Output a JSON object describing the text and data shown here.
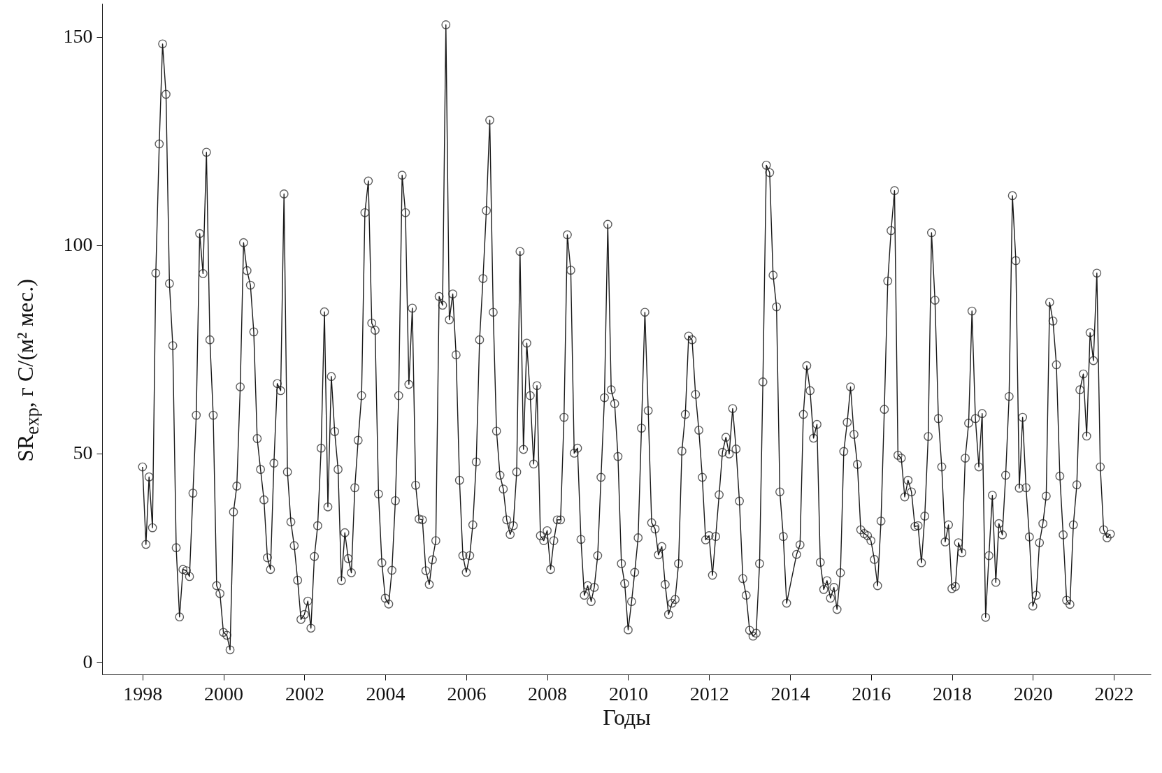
{
  "chart_data": {
    "type": "line",
    "xlabel": "Годы",
    "ylabel": "SR$_{exp}$, г C/(м² мес.)",
    "x": [
      "1998-01",
      "1998-02",
      "1998-03",
      "1998-04",
      "1998-05",
      "1998-06",
      "1998-07",
      "1998-08",
      "1998-09",
      "1998-10",
      "1998-11",
      "1998-12",
      "1999-01",
      "1999-02",
      "1999-03",
      "1999-04",
      "1999-05",
      "1999-06",
      "1999-07",
      "1999-08",
      "1999-09",
      "1999-10",
      "1999-11",
      "1999-12",
      "2000-01",
      "2000-02",
      "2000-03",
      "2000-04",
      "2000-05",
      "2000-06",
      "2000-07",
      "2000-08",
      "2000-09",
      "2000-10",
      "2000-11",
      "2000-12",
      "2001-01",
      "2001-02",
      "2001-03",
      "2001-04",
      "2001-05",
      "2001-06",
      "2001-07",
      "2001-08",
      "2001-09",
      "2001-10",
      "2001-11",
      "2001-12",
      "2002-01",
      "2002-02",
      "2002-03",
      "2002-04",
      "2002-05",
      "2002-06",
      "2002-07",
      "2002-08",
      "2002-09",
      "2002-10",
      "2002-11",
      "2002-12",
      "2003-01",
      "2003-02",
      "2003-03",
      "2003-04",
      "2003-05",
      "2003-06",
      "2003-07",
      "2003-08",
      "2003-09",
      "2003-10",
      "2003-11",
      "2003-12",
      "2004-01",
      "2004-02",
      "2004-03",
      "2004-04",
      "2004-05",
      "2004-06",
      "2004-07",
      "2004-08",
      "2004-09",
      "2004-10",
      "2004-11",
      "2004-12",
      "2005-01",
      "2005-02",
      "2005-03",
      "2005-04",
      "2005-05",
      "2005-06",
      "2005-07",
      "2005-08",
      "2005-09",
      "2005-10",
      "2005-11",
      "2005-12",
      "2006-01",
      "2006-02",
      "2006-03",
      "2006-04",
      "2006-05",
      "2006-06",
      "2006-07",
      "2006-08",
      "2006-09",
      "2006-10",
      "2006-11",
      "2006-12",
      "2007-01",
      "2007-02",
      "2007-03",
      "2007-04",
      "2007-05",
      "2007-06",
      "2007-07",
      "2007-08",
      "2007-09",
      "2007-10",
      "2007-11",
      "2007-12",
      "2008-01",
      "2008-02",
      "2008-03",
      "2008-04",
      "2008-05",
      "2008-06",
      "2008-07",
      "2008-08",
      "2008-09",
      "2008-10",
      "2008-11",
      "2008-12",
      "2009-01",
      "2009-02",
      "2009-03",
      "2009-04",
      "2009-05",
      "2009-06",
      "2009-07",
      "2009-08",
      "2009-09",
      "2009-10",
      "2009-11",
      "2009-12",
      "2010-01",
      "2010-02",
      "2010-03",
      "2010-04",
      "2010-05",
      "2010-06",
      "2010-07",
      "2010-08",
      "2010-09",
      "2010-10",
      "2010-11",
      "2010-12",
      "2011-01",
      "2011-02",
      "2011-03",
      "2011-04",
      "2011-05",
      "2011-06",
      "2011-07",
      "2011-08",
      "2011-09",
      "2011-10",
      "2011-11",
      "2011-12",
      "2012-01",
      "2012-02",
      "2012-03",
      "2012-04",
      "2012-05",
      "2012-06",
      "2012-07",
      "2012-08",
      "2012-09",
      "2012-10",
      "2012-11",
      "2012-12",
      "2013-01",
      "2013-02",
      "2013-03",
      "2013-04",
      "2013-05",
      "2013-06",
      "2013-07",
      "2013-08",
      "2013-09",
      "2013-10",
      "2013-11",
      "2013-12",
      "2014-03",
      "2014-04",
      "2014-05",
      "2014-06",
      "2014-07",
      "2014-08",
      "2014-09",
      "2014-10",
      "2014-11",
      "2014-12",
      "2015-01",
      "2015-02",
      "2015-03",
      "2015-04",
      "2015-05",
      "2015-06",
      "2015-07",
      "2015-08",
      "2015-09",
      "2015-10",
      "2015-11",
      "2015-12",
      "2016-01",
      "2016-02",
      "2016-03",
      "2016-04",
      "2016-05",
      "2016-06",
      "2016-07",
      "2016-08",
      "2016-09",
      "2016-10",
      "2016-11",
      "2016-12",
      "2017-01",
      "2017-02",
      "2017-03",
      "2017-04",
      "2017-05",
      "2017-06",
      "2017-07",
      "2017-08",
      "2017-09",
      "2017-10",
      "2017-11",
      "2017-12",
      "2018-01",
      "2018-02",
      "2018-03",
      "2018-04",
      "2018-05",
      "2018-06",
      "2018-07",
      "2018-08",
      "2018-09",
      "2018-10",
      "2018-11",
      "2018-12",
      "2019-01",
      "2019-02",
      "2019-03",
      "2019-04",
      "2019-05",
      "2019-06",
      "2019-07",
      "2019-08",
      "2019-09",
      "2019-10",
      "2019-11",
      "2019-12",
      "2020-01",
      "2020-02",
      "2020-03",
      "2020-04",
      "2020-05",
      "2020-06",
      "2020-07",
      "2020-08",
      "2020-09",
      "2020-10",
      "2020-11",
      "2020-12",
      "2021-01",
      "2021-02",
      "2021-03",
      "2021-04",
      "2021-05",
      "2021-06",
      "2021-07",
      "2021-08",
      "2021-09",
      "2021-10",
      "2021-11",
      "2021-12"
    ],
    "values": [
      46.8,
      28.2,
      44.4,
      32.2,
      93.3,
      124.3,
      148.3,
      136.2,
      90.8,
      75.9,
      27.4,
      10.8,
      22.2,
      21.9,
      20.5,
      40.5,
      59.2,
      102.8,
      93.2,
      122.3,
      77.3,
      59.2,
      18.3,
      16.4,
      7.1,
      6.4,
      2.9,
      36.0,
      42.2,
      66.0,
      100.6,
      93.9,
      90.4,
      79.2,
      53.6,
      46.2,
      38.9,
      25.0,
      22.2,
      47.7,
      66.8,
      65.1,
      112.3,
      45.6,
      33.6,
      27.9,
      19.6,
      10.2,
      11.4,
      14.6,
      8.1,
      25.3,
      32.7,
      51.3,
      84.0,
      37.2,
      68.5,
      55.3,
      46.2,
      19.5,
      31.0,
      24.8,
      21.4,
      41.8,
      53.2,
      63.9,
      107.8,
      115.4,
      81.3,
      79.6,
      40.3,
      23.8,
      15.3,
      13.9,
      22.0,
      38.7,
      63.9,
      116.8,
      107.8,
      66.6,
      84.9,
      42.4,
      34.3,
      34.1,
      21.9,
      18.6,
      24.5,
      29.1,
      87.7,
      85.6,
      152.9,
      82.1,
      88.3,
      73.7,
      43.6,
      25.5,
      21.5,
      25.5,
      32.9,
      48.0,
      77.3,
      92.0,
      108.3,
      130.0,
      83.9,
      55.4,
      44.8,
      41.5,
      34.1,
      30.6,
      32.7,
      45.6,
      98.5,
      51.0,
      76.5,
      63.9,
      47.5,
      66.3,
      30.3,
      29.1,
      31.5,
      22.2,
      29.1,
      34.1,
      34.1,
      58.7,
      102.5,
      94.0,
      50.1,
      51.3,
      29.4,
      16.0,
      18.3,
      14.5,
      17.9,
      25.5,
      44.3,
      63.4,
      105.0,
      65.3,
      62.0,
      49.3,
      23.6,
      18.8,
      7.7,
      14.5,
      21.5,
      29.8,
      56.1,
      83.9,
      60.3,
      33.4,
      31.9,
      25.7,
      27.7,
      18.6,
      11.4,
      14.1,
      15.0,
      23.6,
      50.6,
      59.4,
      78.2,
      77.3,
      64.2,
      55.6,
      44.3,
      29.3,
      30.3,
      20.8,
      30.1,
      40.1,
      50.3,
      53.9,
      49.9,
      60.8,
      51.1,
      38.6,
      20.0,
      16.0,
      7.6,
      6.2,
      6.9,
      23.6,
      67.2,
      119.2,
      117.4,
      92.8,
      85.2,
      40.8,
      30.1,
      14.1,
      25.8,
      28.1,
      59.4,
      71.1,
      65.1,
      53.7,
      57.0,
      23.9,
      17.4,
      19.5,
      15.3,
      17.9,
      12.6,
      21.4,
      50.5,
      57.5,
      66.0,
      54.6,
      47.4,
      31.7,
      30.8,
      30.3,
      29.1,
      24.6,
      18.3,
      33.8,
      60.6,
      91.4,
      103.5,
      113.1,
      49.6,
      48.9,
      39.6,
      43.6,
      40.8,
      32.5,
      32.7,
      23.8,
      35.0,
      54.1,
      103.0,
      86.8,
      58.4,
      46.8,
      28.8,
      32.9,
      17.6,
      18.1,
      28.6,
      26.2,
      48.9,
      57.3,
      84.2,
      58.4,
      46.8,
      59.6,
      10.7,
      25.5,
      40.0,
      19.1,
      33.2,
      30.5,
      44.8,
      63.7,
      111.9,
      96.3,
      41.7,
      58.7,
      41.8,
      30.0,
      13.4,
      16.0,
      28.6,
      33.2,
      39.8,
      86.3,
      81.8,
      71.3,
      44.6,
      30.5,
      14.8,
      13.8,
      32.9,
      42.5,
      65.3,
      69.1,
      54.2,
      79.0,
      72.3,
      93.3,
      46.8,
      31.7,
      29.8,
      30.7
    ],
    "color": "#1a1a1a",
    "marker": "circle",
    "line_style": "solid",
    "grid": false,
    "xlim": [
      "1997-01",
      "2022-12"
    ],
    "xticks": [
      "1998",
      "2000",
      "2002",
      "2004",
      "2006",
      "2008",
      "2010",
      "2012",
      "2014",
      "2016",
      "2018",
      "2020",
      "2022"
    ],
    "ylim": [
      -3,
      158
    ],
    "yticks": [
      0,
      50,
      100,
      150
    ]
  }
}
